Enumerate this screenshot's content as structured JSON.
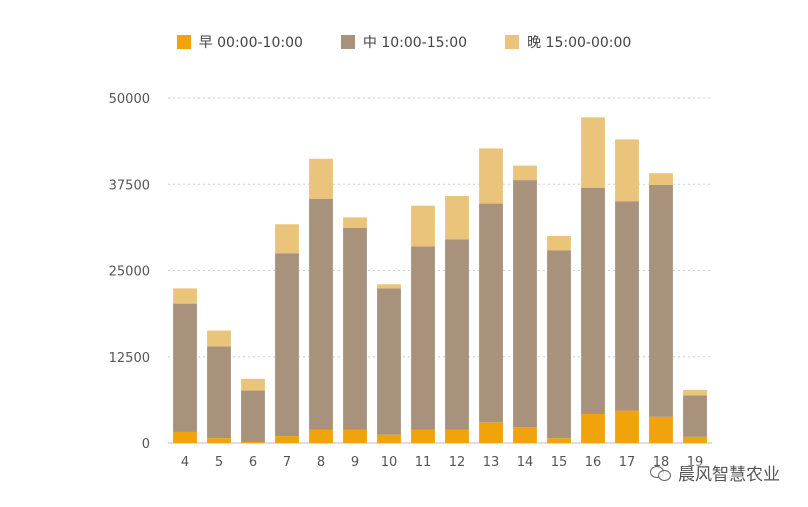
{
  "chart_data": {
    "type": "bar",
    "stacked": true,
    "categories": [
      "4",
      "5",
      "6",
      "7",
      "8",
      "9",
      "10",
      "11",
      "12",
      "13",
      "14",
      "15",
      "16",
      "17",
      "18",
      "19"
    ],
    "series": [
      {
        "name": "早 00:00-10:00",
        "color": "#F0A30A",
        "values": [
          1600,
          700,
          150,
          1000,
          1900,
          1900,
          1200,
          1900,
          1900,
          3000,
          2300,
          700,
          4200,
          4700,
          3800,
          900
        ]
      },
      {
        "name": "中 10:00-15:00",
        "color": "#A8927B",
        "values": [
          18600,
          13300,
          7450,
          26500,
          33500,
          29300,
          21200,
          26600,
          27600,
          31700,
          35800,
          27200,
          32800,
          30300,
          33600,
          6000
        ]
      },
      {
        "name": "晚 15:00-00:00",
        "color": "#E9C47A",
        "values": [
          2200,
          2300,
          1700,
          4200,
          5800,
          1500,
          600,
          5900,
          6300,
          8000,
          2100,
          2100,
          10200,
          9000,
          1700,
          800
        ]
      }
    ],
    "yticks": [
      0,
      12500,
      25000,
      37500,
      50000
    ],
    "ytick_labels": [
      "0",
      "12500",
      "25000",
      "37500",
      "50000"
    ],
    "ylim": [
      0,
      50000
    ],
    "grid": true,
    "legend_position": "top-center",
    "title": "",
    "xlabel": "",
    "ylabel": ""
  },
  "watermark": {
    "text": "晨风智慧农业",
    "icon": "wechat-icon"
  }
}
